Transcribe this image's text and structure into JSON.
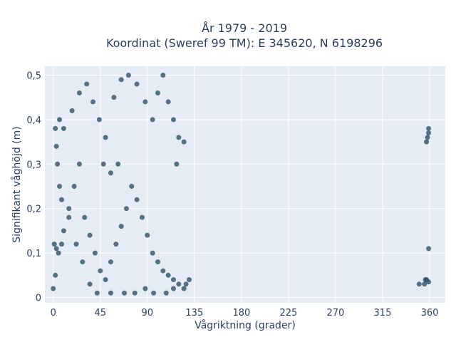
{
  "chart_data": {
    "type": "scatter",
    "title_lines": [
      "År 1979 - 2019",
      "Koordinat (Sweref 99 TM): E 345620, N 6198296"
    ],
    "xlabel": "Vågriktning (grader)",
    "ylabel": "Signifikant våghöjd (m)",
    "xlim": [
      -8,
      375
    ],
    "ylim": [
      -0.012,
      0.52
    ],
    "xticks": [
      0,
      45,
      90,
      135,
      180,
      225,
      270,
      315,
      360
    ],
    "xtick_labels": [
      "0",
      "45",
      "90",
      "135",
      "180",
      "225",
      "270",
      "315",
      "360"
    ],
    "yticks": [
      0,
      0.1,
      0.2,
      0.3,
      0.4,
      0.5
    ],
    "ytick_labels": [
      "0",
      "0,1",
      "0,2",
      "0,3",
      "0,4",
      "0,5"
    ],
    "grid": true,
    "marker_color": "#2e5168",
    "plot_bg": "#e5ecf6",
    "series": [
      {
        "points": [
          [
            0,
            0.02
          ],
          [
            2,
            0.05
          ],
          [
            5,
            0.1
          ],
          [
            8,
            0.12
          ],
          [
            10,
            0.15
          ],
          [
            15,
            0.2
          ],
          [
            20,
            0.25
          ],
          [
            25,
            0.3
          ],
          [
            30,
            0.18
          ],
          [
            35,
            0.14
          ],
          [
            40,
            0.1
          ],
          [
            45,
            0.06
          ],
          [
            50,
            0.04
          ],
          [
            55,
            0.08
          ],
          [
            60,
            0.12
          ],
          [
            65,
            0.16
          ],
          [
            70,
            0.2
          ],
          [
            75,
            0.25
          ],
          [
            80,
            0.22
          ],
          [
            85,
            0.18
          ],
          [
            90,
            0.14
          ],
          [
            95,
            0.1
          ],
          [
            100,
            0.08
          ],
          [
            105,
            0.06
          ],
          [
            110,
            0.05
          ],
          [
            115,
            0.04
          ],
          [
            120,
            0.03
          ],
          [
            125,
            0.02
          ],
          [
            130,
            0.04
          ],
          [
            3,
            0.34
          ],
          [
            10,
            0.38
          ],
          [
            18,
            0.42
          ],
          [
            25,
            0.46
          ],
          [
            32,
            0.48
          ],
          [
            38,
            0.44
          ],
          [
            44,
            0.4
          ],
          [
            50,
            0.36
          ],
          [
            58,
            0.45
          ],
          [
            65,
            0.49
          ],
          [
            72,
            0.5
          ],
          [
            80,
            0.48
          ],
          [
            88,
            0.44
          ],
          [
            95,
            0.4
          ],
          [
            100,
            0.46
          ],
          [
            105,
            0.5
          ],
          [
            110,
            0.44
          ],
          [
            115,
            0.4
          ],
          [
            120,
            0.36
          ],
          [
            125,
            0.35
          ],
          [
            118,
            0.3
          ],
          [
            62,
            0.3
          ],
          [
            55,
            0.28
          ],
          [
            48,
            0.3
          ],
          [
            2,
            0.38
          ],
          [
            6,
            0.4
          ],
          [
            4,
            0.3
          ],
          [
            6,
            0.25
          ],
          [
            8,
            0.22
          ],
          [
            15,
            0.18
          ],
          [
            22,
            0.12
          ],
          [
            28,
            0.08
          ],
          [
            35,
            0.03
          ],
          [
            42,
            0.01
          ],
          [
            55,
            0.01
          ],
          [
            68,
            0.01
          ],
          [
            78,
            0.01
          ],
          [
            88,
            0.02
          ],
          [
            96,
            0.01
          ],
          [
            108,
            0.01
          ],
          [
            115,
            0.02
          ],
          [
            127,
            0.03
          ],
          [
            1,
            0.12
          ],
          [
            3,
            0.11
          ],
          [
            350,
            0.03
          ],
          [
            355,
            0.03
          ],
          [
            356,
            0.04
          ],
          [
            357,
            0.04
          ],
          [
            359,
            0.035
          ],
          [
            359,
            0.11
          ],
          [
            357,
            0.35
          ],
          [
            358,
            0.36
          ],
          [
            359,
            0.37
          ],
          [
            359,
            0.38
          ]
        ]
      }
    ]
  }
}
